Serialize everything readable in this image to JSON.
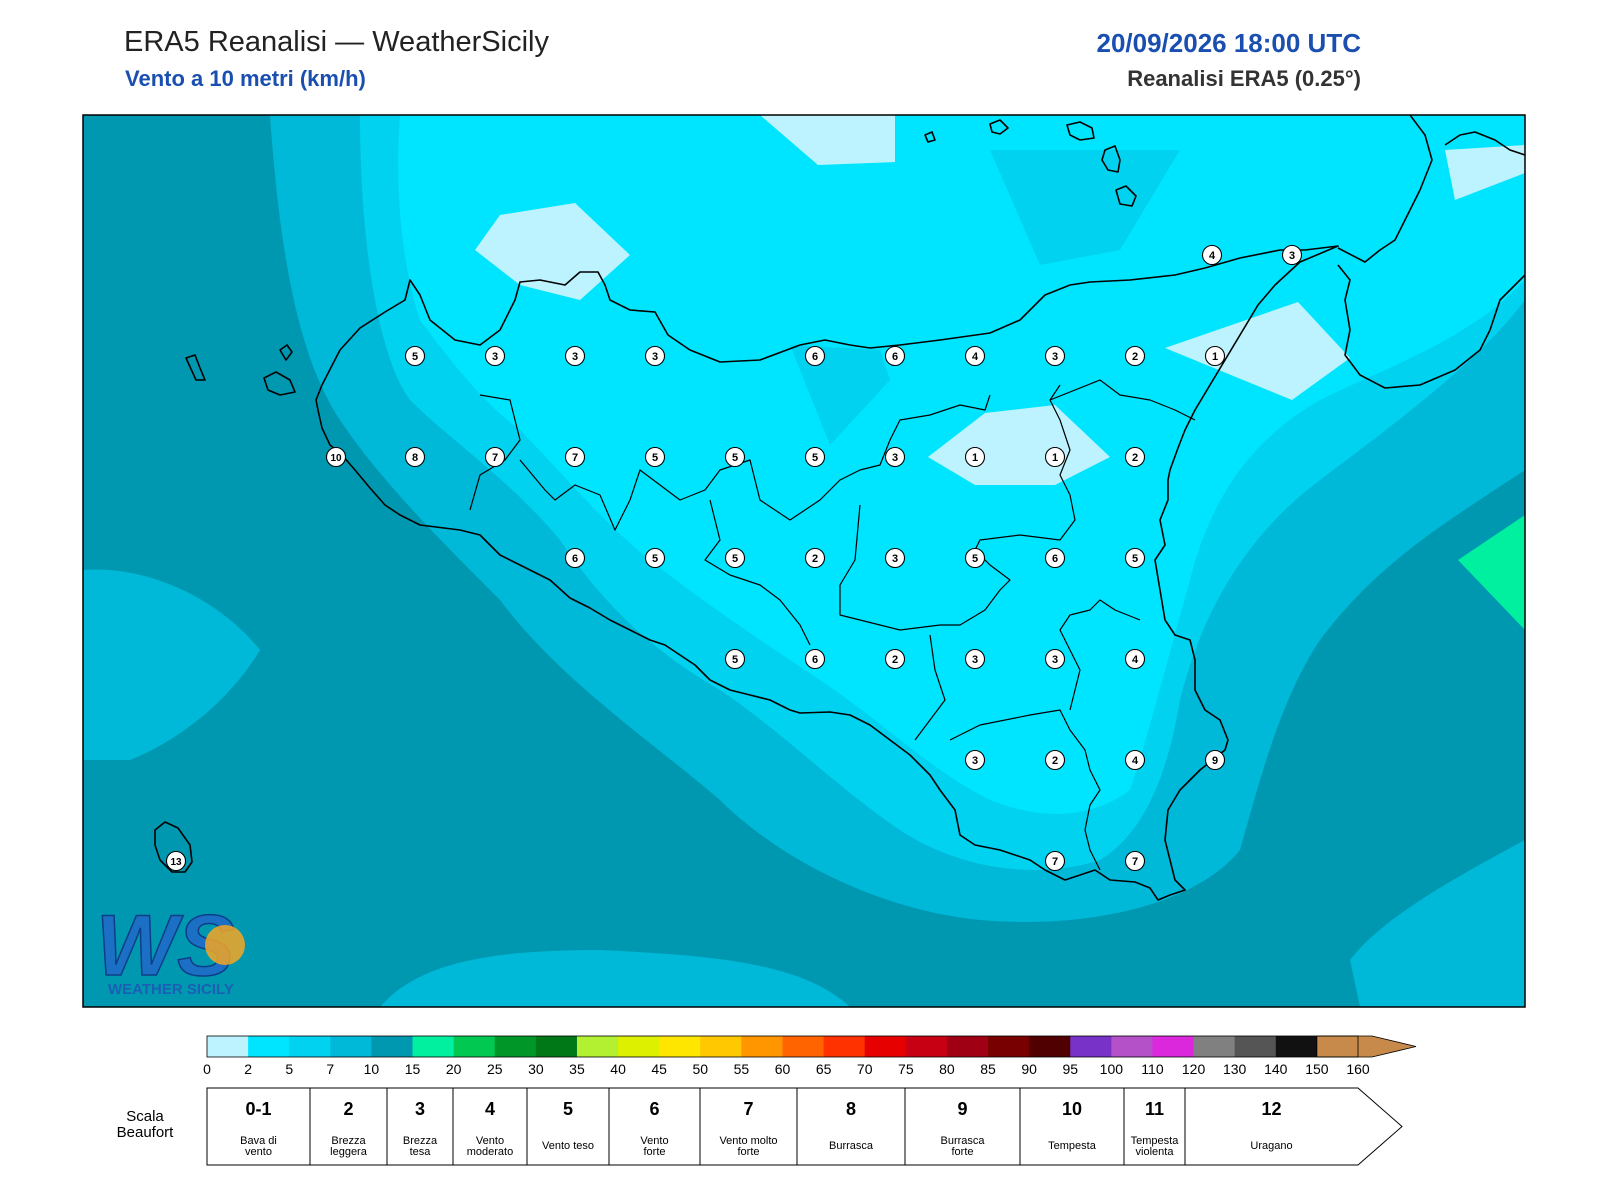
{
  "header": {
    "title": "ERA5 Reanalisi — WeatherSicily",
    "subtitle": "Vento a 10 metri (km/h)",
    "date": "20/09/2026 18:00 UTC",
    "source": "Reanalisi ERA5 (0.25°)"
  },
  "logo": {
    "text": "WEATHER SICILY",
    "letters": "WS"
  },
  "map_values": [
    {
      "v": "4",
      "c": [
        1212,
        255
      ]
    },
    {
      "v": "3",
      "c": [
        1292,
        255
      ]
    },
    {
      "v": "5",
      "c": [
        415,
        356
      ]
    },
    {
      "v": "3",
      "c": [
        495,
        356
      ]
    },
    {
      "v": "3",
      "c": [
        575,
        356
      ]
    },
    {
      "v": "3",
      "c": [
        655,
        356
      ]
    },
    {
      "v": "6",
      "c": [
        815,
        356
      ]
    },
    {
      "v": "6",
      "c": [
        895,
        356
      ]
    },
    {
      "v": "4",
      "c": [
        975,
        356
      ]
    },
    {
      "v": "3",
      "c": [
        1055,
        356
      ]
    },
    {
      "v": "2",
      "c": [
        1135,
        356
      ]
    },
    {
      "v": "1",
      "c": [
        1215,
        356
      ]
    },
    {
      "v": "10",
      "c": [
        336,
        457
      ]
    },
    {
      "v": "8",
      "c": [
        415,
        457
      ]
    },
    {
      "v": "7",
      "c": [
        495,
        457
      ]
    },
    {
      "v": "7",
      "c": [
        575,
        457
      ]
    },
    {
      "v": "5",
      "c": [
        655,
        457
      ]
    },
    {
      "v": "5",
      "c": [
        735,
        457
      ]
    },
    {
      "v": "5",
      "c": [
        815,
        457
      ]
    },
    {
      "v": "3",
      "c": [
        895,
        457
      ]
    },
    {
      "v": "1",
      "c": [
        975,
        457
      ]
    },
    {
      "v": "1",
      "c": [
        1055,
        457
      ]
    },
    {
      "v": "2",
      "c": [
        1135,
        457
      ]
    },
    {
      "v": "6",
      "c": [
        575,
        558
      ]
    },
    {
      "v": "5",
      "c": [
        655,
        558
      ]
    },
    {
      "v": "5",
      "c": [
        735,
        558
      ]
    },
    {
      "v": "2",
      "c": [
        815,
        558
      ]
    },
    {
      "v": "3",
      "c": [
        895,
        558
      ]
    },
    {
      "v": "5",
      "c": [
        975,
        558
      ]
    },
    {
      "v": "6",
      "c": [
        1055,
        558
      ]
    },
    {
      "v": "5",
      "c": [
        1135,
        558
      ]
    },
    {
      "v": "5",
      "c": [
        735,
        659
      ]
    },
    {
      "v": "6",
      "c": [
        815,
        659
      ]
    },
    {
      "v": "2",
      "c": [
        895,
        659
      ]
    },
    {
      "v": "3",
      "c": [
        975,
        659
      ]
    },
    {
      "v": "3",
      "c": [
        1055,
        659
      ]
    },
    {
      "v": "4",
      "c": [
        1135,
        659
      ]
    },
    {
      "v": "3",
      "c": [
        975,
        760
      ]
    },
    {
      "v": "2",
      "c": [
        1055,
        760
      ]
    },
    {
      "v": "4",
      "c": [
        1135,
        760
      ]
    },
    {
      "v": "9",
      "c": [
        1215,
        760
      ]
    },
    {
      "v": "7",
      "c": [
        1055,
        861
      ]
    },
    {
      "v": "7",
      "c": [
        1135,
        861
      ]
    },
    {
      "v": "13",
      "c": [
        176,
        861
      ]
    }
  ],
  "colorbar": {
    "ticks": [
      "0",
      "2",
      "5",
      "7",
      "10",
      "15",
      "20",
      "25",
      "30",
      "35",
      "40",
      "45",
      "50",
      "55",
      "60",
      "65",
      "70",
      "75",
      "80",
      "85",
      "90",
      "95",
      "100",
      "110",
      "120",
      "130",
      "140",
      "150",
      "160"
    ],
    "colors": [
      "#bdf3ff",
      "#00e5ff",
      "#00d2f0",
      "#00b8d8",
      "#0098b0",
      "#00f0a0",
      "#00c850",
      "#009628",
      "#007818",
      "#b4f032",
      "#dcf000",
      "#ffe600",
      "#ffc800",
      "#ff9600",
      "#ff6400",
      "#ff3200",
      "#e60000",
      "#c80014",
      "#a00014",
      "#780000",
      "#500000",
      "#7832c8",
      "#b450c8",
      "#dc28dc",
      "#808080",
      "#555555",
      "#111111",
      "#7a4a2a",
      "#c88a4a"
    ]
  },
  "beaufort": {
    "label": "Scala\nBeaufort",
    "label_line1": "Scala",
    "label_line2": "Beaufort",
    "cells": [
      {
        "num": "0-1",
        "desc1": "Bava di",
        "desc2": "vento"
      },
      {
        "num": "2",
        "desc1": "Brezza",
        "desc2": "leggera"
      },
      {
        "num": "3",
        "desc1": "Brezza",
        "desc2": "tesa"
      },
      {
        "num": "4",
        "desc1": "Vento",
        "desc2": "moderato"
      },
      {
        "num": "5",
        "desc1": "Vento teso",
        "desc2": ""
      },
      {
        "num": "6",
        "desc1": "Vento",
        "desc2": "forte"
      },
      {
        "num": "7",
        "desc1": "Vento molto",
        "desc2": "forte"
      },
      {
        "num": "8",
        "desc1": "Burrasca",
        "desc2": ""
      },
      {
        "num": "9",
        "desc1": "Burrasca",
        "desc2": "forte"
      },
      {
        "num": "10",
        "desc1": "Tempesta",
        "desc2": ""
      },
      {
        "num": "11",
        "desc1": "Tempesta",
        "desc2": "violenta"
      },
      {
        "num": "12",
        "desc1": "Uragano",
        "desc2": ""
      }
    ]
  }
}
